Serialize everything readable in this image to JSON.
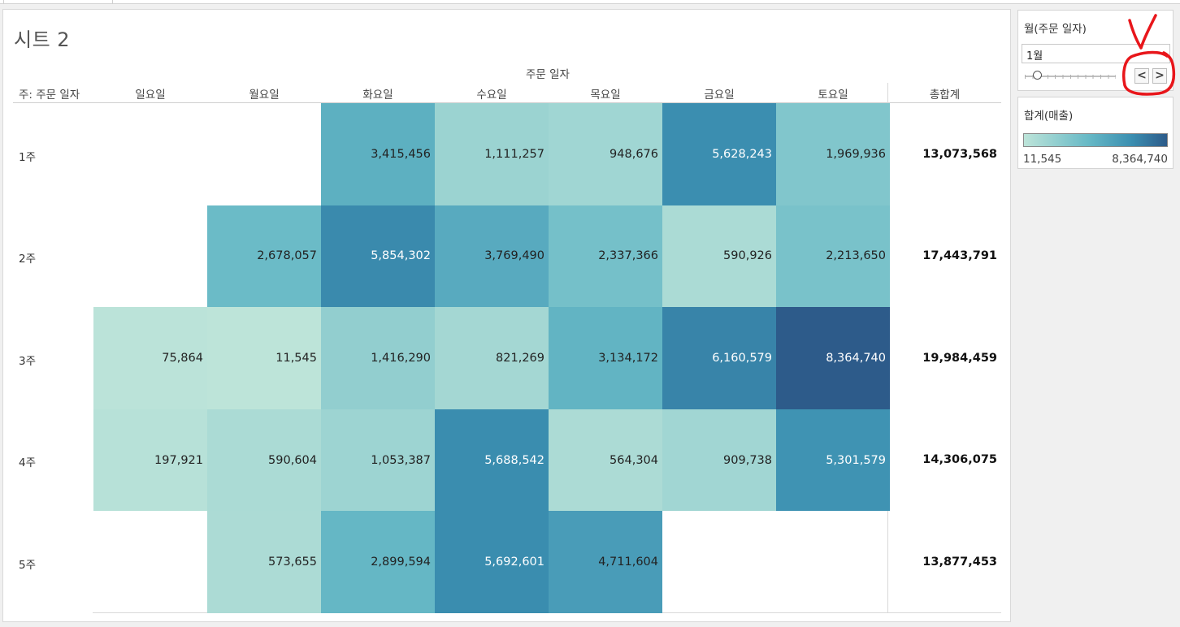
{
  "sheet": {
    "title": "시트 2",
    "column_group_header": "주문 일자",
    "row_header": "주: 주문 일자",
    "columns": [
      "일요일",
      "월요일",
      "화요일",
      "수요일",
      "목요일",
      "금요일",
      "토요일"
    ],
    "total_header": "총합계",
    "rows": [
      {
        "label": "1주",
        "total": "13,073,568"
      },
      {
        "label": "2주",
        "total": "17,443,791"
      },
      {
        "label": "3주",
        "total": "19,984,459"
      },
      {
        "label": "4주",
        "total": "14,306,075"
      },
      {
        "label": "5주",
        "total": "13,877,453"
      }
    ]
  },
  "chart_data": {
    "type": "heatmap",
    "title": "시트 2",
    "x_header": "주문 일자",
    "y_header": "주: 주문 일자",
    "x": [
      "일요일",
      "월요일",
      "화요일",
      "수요일",
      "목요일",
      "금요일",
      "토요일"
    ],
    "y": [
      "1주",
      "2주",
      "3주",
      "4주",
      "5주"
    ],
    "values": [
      [
        null,
        null,
        3415456,
        1111257,
        948676,
        5628243,
        1969936
      ],
      [
        null,
        2678057,
        5854302,
        3769490,
        2337366,
        590926,
        2213650
      ],
      [
        75864,
        11545,
        1416290,
        821269,
        3134172,
        6160579,
        8364740
      ],
      [
        197921,
        590604,
        1053387,
        5688542,
        564304,
        909738,
        5301579
      ],
      [
        null,
        573655,
        2899594,
        5692601,
        4711604,
        null,
        null
      ]
    ],
    "labels": [
      [
        null,
        null,
        "3,415,456",
        "1,111,257",
        "948,676",
        "5,628,243",
        "1,969,936"
      ],
      [
        null,
        "2,678,057",
        "5,854,302",
        "3,769,490",
        "2,337,366",
        "590,926",
        "2,213,650"
      ],
      [
        "75,864",
        "11,545",
        "1,416,290",
        "821,269",
        "3,134,172",
        "6,160,579",
        "8,364,740"
      ],
      [
        "197,921",
        "590,604",
        "1,053,387",
        "5,688,542",
        "564,304",
        "909,738",
        "5,301,579"
      ],
      [
        null,
        "573,655",
        "2,899,594",
        "5,692,601",
        "4,711,604",
        null,
        null
      ]
    ],
    "row_totals": [
      13073568,
      17443791,
      19984459,
      14306075,
      13877453
    ],
    "color_range": [
      11545,
      8364740
    ],
    "color_scale": [
      "#bde4d9",
      "#67b9c6",
      "#3b8fb1",
      "#2d5b8a"
    ]
  },
  "filter": {
    "title": "월(주문 일자)",
    "value": "1월",
    "prev_label": "<",
    "next_label": ">"
  },
  "legend": {
    "title": "합계(매출)",
    "min_label": "11,545",
    "max_label": "8,364,740"
  },
  "colors": {
    "annotation": "#e8161b"
  }
}
